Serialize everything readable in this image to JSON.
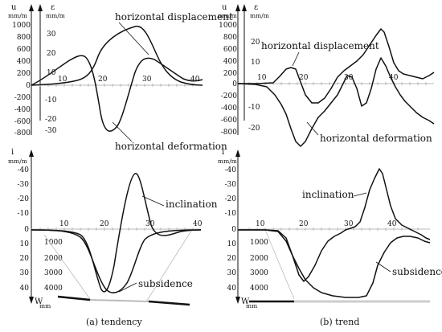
{
  "colors": {
    "ink": "#111111",
    "axis_gray": "#bbbbbb",
    "background": "#ffffff"
  },
  "panels": [
    {
      "id": "a",
      "caption": "(a) tendency",
      "top": {
        "left_axis": {
          "symbol": "u",
          "unit": "mm/m",
          "ticks": [
            "1000",
            "800",
            "600",
            "400",
            "200",
            "0",
            "-200",
            "-400",
            "-600",
            "-800"
          ]
        },
        "right_axis": {
          "symbol": "ε",
          "unit": "mm/m",
          "ticks": [
            "30",
            "20",
            "10",
            "-10",
            "-20",
            "-30"
          ]
        },
        "x_ticks": [
          "10",
          "20",
          "30",
          "40"
        ],
        "labels": {
          "displacement": "horizontal displacement",
          "deformation": "horizontal deformation"
        }
      },
      "bottom": {
        "left_axis": {
          "symbol": "i",
          "unit": "mm/m",
          "ticks": [
            "-40",
            "-30",
            "-20",
            "-10",
            "0",
            "10",
            "20",
            "30",
            "40"
          ]
        },
        "w_axis": {
          "symbol": "W",
          "unit": "mm",
          "ticks": [
            "1000",
            "2000",
            "3000",
            "4000"
          ]
        },
        "x_ticks": [
          "10",
          "20",
          "30",
          "40"
        ],
        "labels": {
          "inclination": "inclination",
          "subsidence": "subsidence"
        }
      }
    },
    {
      "id": "b",
      "caption": "(b) trend",
      "top": {
        "left_axis": {
          "symbol": "u",
          "unit": "mm/m",
          "ticks": [
            "1000",
            "800",
            "600",
            "400",
            "200",
            "0",
            "-200",
            "-400",
            "-600",
            "-800"
          ]
        },
        "right_axis": {
          "symbol": "ε",
          "unit": "mm/m",
          "ticks": [
            "20",
            "10",
            "-10",
            "-20"
          ]
        },
        "x_ticks": [
          "10",
          "20",
          "30",
          "40"
        ],
        "labels": {
          "displacement": "horizontal displacement",
          "deformation": "horizontal deformation"
        }
      },
      "bottom": {
        "left_axis": {
          "symbol": "i",
          "unit": "mm/m",
          "ticks": [
            "-40",
            "-30",
            "-20",
            "-10",
            "0",
            "10",
            "20",
            "30",
            "40"
          ]
        },
        "w_axis": {
          "symbol": "W",
          "unit": "mm",
          "ticks": [
            "1000",
            "2000",
            "3000",
            "4000"
          ]
        },
        "x_ticks": [
          "10",
          "20",
          "30",
          "40"
        ],
        "labels": {
          "inclination": "inclination",
          "subsidence": "subsidence"
        }
      }
    }
  ]
}
